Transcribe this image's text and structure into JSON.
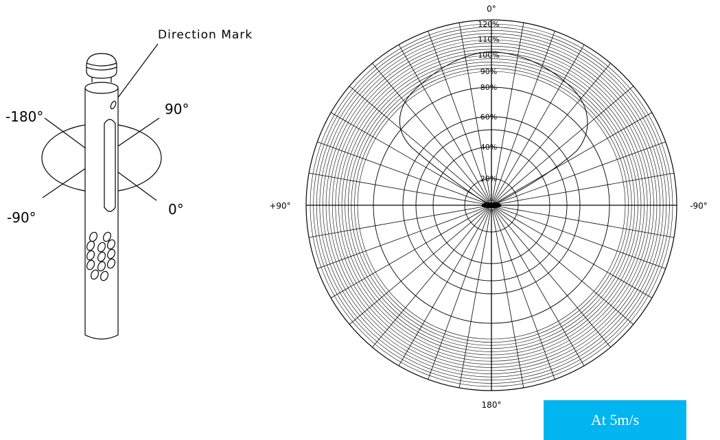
{
  "sensor": {
    "direction_mark": "Direction Mark",
    "angles": [
      "-180°",
      "90°",
      "-90°",
      "0°"
    ]
  },
  "polar": {
    "top": "0°",
    "bottom": "180°",
    "left": "+90°",
    "right": "-90°",
    "rings": [
      "20%",
      "40%",
      "60%",
      "80%",
      "90%",
      "100%",
      "110%",
      "120%"
    ]
  },
  "caption": "At 5m/s"
}
